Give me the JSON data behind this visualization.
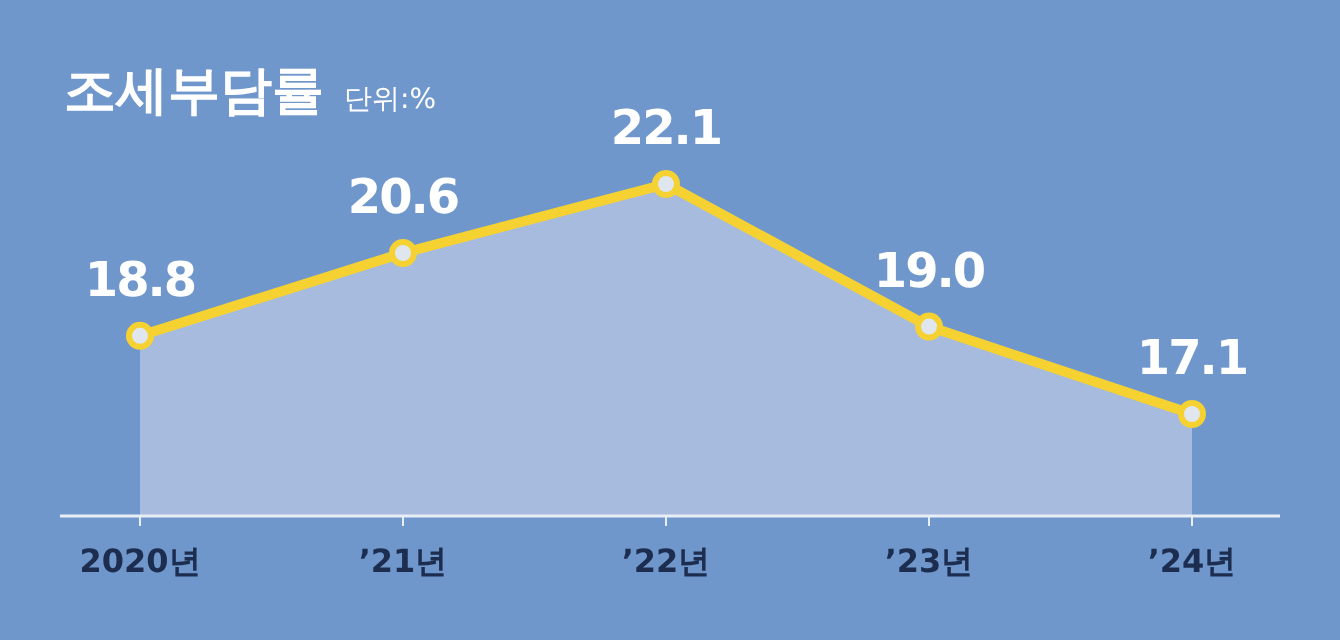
{
  "chart_data": {
    "type": "area",
    "title": "조세부담률",
    "subtitle": "단위:%",
    "categories": [
      "2020년",
      "’21년",
      "’22년",
      "’23년",
      "’24년"
    ],
    "series": [
      {
        "color": "#f5d232",
        "values": [
          18.8,
          20.6,
          22.1,
          19.0,
          17.1
        ],
        "value_labels": [
          "18.8",
          "20.6",
          "22.1",
          "19.0",
          "17.1"
        ]
      }
    ],
    "marker": "circle",
    "line_style": "solid"
  }
}
